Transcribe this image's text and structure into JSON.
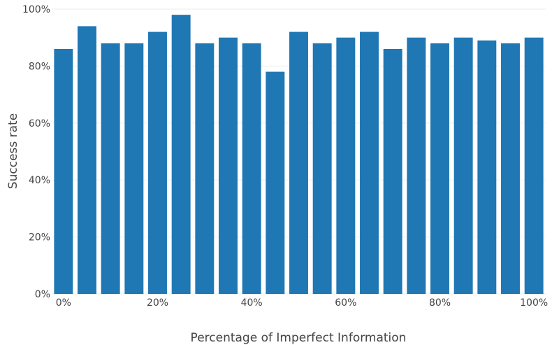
{
  "chart_data": {
    "type": "bar",
    "xlabel": "Percentage of Imperfect Information",
    "ylabel": "Success rate",
    "categories": [
      0,
      5,
      10,
      15,
      20,
      25,
      30,
      35,
      40,
      45,
      50,
      55,
      60,
      65,
      70,
      75,
      80,
      85,
      90,
      95,
      100
    ],
    "values": [
      86,
      94,
      88,
      88,
      92,
      98,
      88,
      90,
      88,
      78,
      92,
      88,
      90,
      92,
      86,
      90,
      88,
      90,
      89,
      88,
      90
    ],
    "xticks": [
      {
        "value": 0,
        "label": "0%"
      },
      {
        "value": 20,
        "label": "20%"
      },
      {
        "value": 40,
        "label": "40%"
      },
      {
        "value": 60,
        "label": "60%"
      },
      {
        "value": 80,
        "label": "80%"
      },
      {
        "value": 100,
        "label": "100%"
      }
    ],
    "yticks": [
      {
        "value": 0,
        "label": "0%"
      },
      {
        "value": 20,
        "label": "20%"
      },
      {
        "value": 40,
        "label": "40%"
      },
      {
        "value": 60,
        "label": "60%"
      },
      {
        "value": 80,
        "label": "80%"
      },
      {
        "value": 100,
        "label": "100%"
      }
    ],
    "xlim": [
      -2.5,
      102.5
    ],
    "ylim": [
      0,
      100
    ],
    "grid": true,
    "legend": "none",
    "bar_color": "#1f77b4",
    "grid_color": "#eeeeee",
    "axis_color": "#444444"
  }
}
